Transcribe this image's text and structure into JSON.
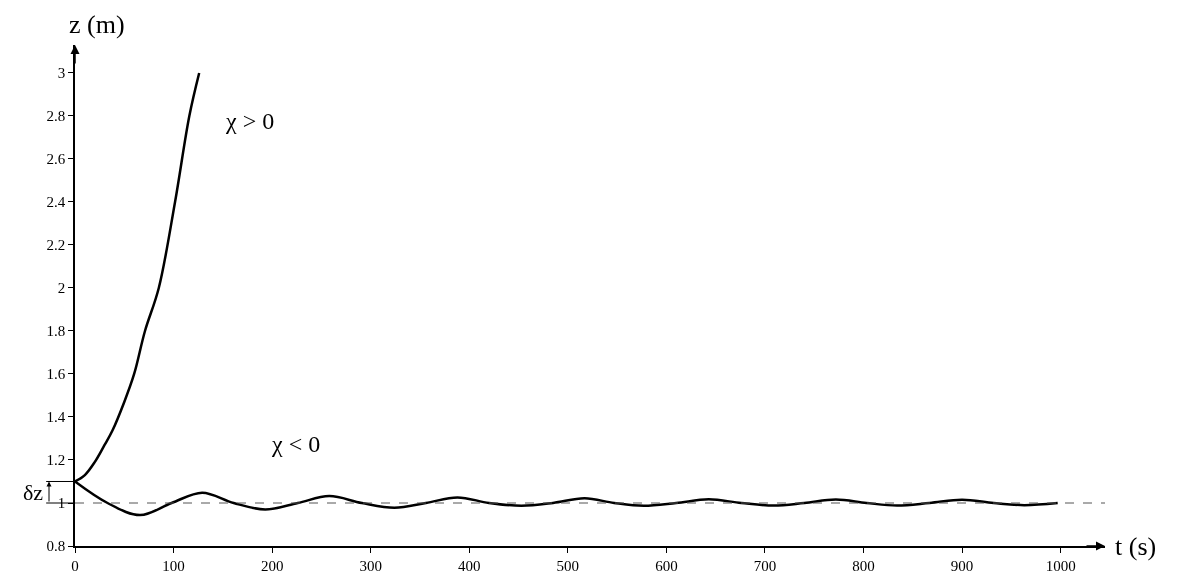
{
  "chart_data": {
    "type": "line",
    "xlabel": "t (s)",
    "ylabel": "z (m)",
    "x": [
      0,
      10,
      20,
      30,
      38,
      50,
      60,
      71,
      85,
      101.5,
      116,
      126
    ],
    "series": [
      {
        "name": "χ > 0",
        "color": "#000000",
        "values": [
          1.1,
          1.13,
          1.19,
          1.27,
          1.337,
          1.47,
          1.6,
          1.8,
          2.0,
          2.4,
          2.8,
          3.0
        ]
      },
      {
        "name": "χ < 0",
        "color": "#000000",
        "x": [
          0,
          33,
          66,
          98,
          129,
          161,
          193,
          226,
          258,
          291,
          324,
          356,
          388,
          420,
          453,
          485,
          517,
          547,
          577,
          610,
          643,
          676,
          709,
          740,
          772,
          803,
          834,
          867,
          900,
          932,
          963,
          997
        ],
        "values": [
          1.1,
          1.0,
          0.944,
          1.0,
          1.048,
          1.0,
          0.97,
          1.0,
          1.032,
          1.0,
          0.978,
          1.0,
          1.026,
          1.0,
          0.987,
          1.0,
          1.022,
          1.0,
          0.987,
          1.0,
          1.017,
          1.0,
          0.988,
          1.0,
          1.016,
          1.0,
          0.988,
          1.0,
          1.015,
          1.0,
          0.99,
          1.0
        ]
      }
    ],
    "ref_lines": [
      {
        "axis": "y",
        "value": 1.0,
        "color": "#555555",
        "line_style": "dashed"
      }
    ],
    "annotations": [
      "δz"
    ],
    "xlim": [
      0,
      1045
    ],
    "ylim": [
      0.8,
      3.13
    ],
    "xticks": [
      0,
      100,
      200,
      300,
      400,
      500,
      600,
      700,
      800,
      900,
      1000
    ],
    "yticks": [
      0.8,
      1,
      1.2,
      1.4,
      1.6,
      1.8,
      2,
      2.2,
      2.4,
      2.6,
      2.8,
      3
    ],
    "legend": false,
    "marker": "none",
    "line_style": "solid"
  }
}
